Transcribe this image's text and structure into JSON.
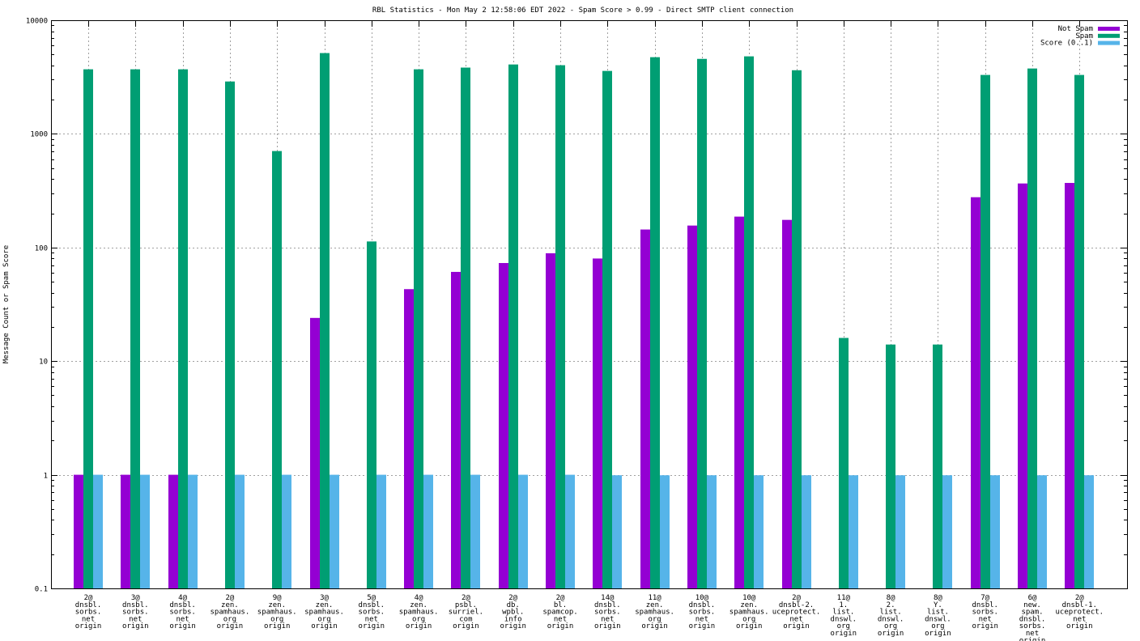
{
  "chart_data": {
    "type": "bar",
    "title": "RBL Statistics - Mon May  2 12:58:06 EDT 2022 - Spam Score > 0.99 - Direct SMTP client connection",
    "xlabel": "",
    "ylabel": "Message Count or Spam Score",
    "yscale": "log",
    "ylim": [
      0.1,
      10000
    ],
    "yticks": [
      0.1,
      1,
      10,
      100,
      1000,
      10000
    ],
    "ytick_labels": [
      "0.1",
      "1",
      "10",
      "100",
      "1000",
      "10000"
    ],
    "grid": true,
    "legend_position": "top-right",
    "categories": [
      [
        "2@",
        "dnsbl.",
        "sorbs.",
        "net",
        "origin"
      ],
      [
        "3@",
        "dnsbl.",
        "sorbs.",
        "net",
        "origin"
      ],
      [
        "4@",
        "dnsbl.",
        "sorbs.",
        "net",
        "origin"
      ],
      [
        "2@",
        "zen.",
        "spamhaus.",
        "org",
        "origin"
      ],
      [
        "9@",
        "zen.",
        "spamhaus.",
        "org",
        "origin"
      ],
      [
        "3@",
        "zen.",
        "spamhaus.",
        "org",
        "origin"
      ],
      [
        "5@",
        "dnsbl.",
        "sorbs.",
        "net",
        "origin"
      ],
      [
        "4@",
        "zen.",
        "spamhaus.",
        "org",
        "origin"
      ],
      [
        "2@",
        "psbl.",
        "surriel.",
        "com",
        "origin"
      ],
      [
        "2@",
        "db.",
        "wpbl.",
        "info",
        "origin"
      ],
      [
        "2@",
        "bl.",
        "spamcop.",
        "net",
        "origin"
      ],
      [
        "14@",
        "dnsbl.",
        "sorbs.",
        "net",
        "origin"
      ],
      [
        "11@",
        "zen.",
        "spamhaus.",
        "org",
        "origin"
      ],
      [
        "10@",
        "dnsbl.",
        "sorbs.",
        "net",
        "origin"
      ],
      [
        "10@",
        "zen.",
        "spamhaus.",
        "org",
        "origin"
      ],
      [
        "2@",
        "dnsbl-2.",
        "uceprotect.",
        "net",
        "origin"
      ],
      [
        "11@",
        "1.",
        "list.",
        "dnswl.",
        "org",
        "origin"
      ],
      [
        "8@",
        "2.",
        "list.",
        "dnswl.",
        "org",
        "origin"
      ],
      [
        "8@",
        "Y.",
        "list.",
        "dnswl.",
        "org",
        "origin"
      ],
      [
        "7@",
        "dnsbl.",
        "sorbs.",
        "net",
        "origin"
      ],
      [
        "6@",
        "new.",
        "spam.",
        "dnsbl.",
        "sorbs.",
        "net",
        "origin"
      ],
      [
        "2@",
        "dnsbl-1.",
        "uceprotect.",
        "net",
        "origin"
      ]
    ],
    "series": [
      {
        "name": "Not Spam",
        "color": "#9400d3",
        "values": [
          1,
          1,
          1,
          0,
          0,
          24,
          0,
          43,
          61,
          73,
          89,
          80,
          144,
          156,
          187,
          175,
          0,
          0,
          0,
          277,
          366,
          370
        ]
      },
      {
        "name": "Spam",
        "color": "#009e73",
        "values": [
          3700,
          3700,
          3700,
          2890,
          706,
          5140,
          113,
          3700,
          3830,
          4080,
          4020,
          3580,
          4730,
          4570,
          4810,
          3630,
          16,
          14,
          14,
          3300,
          3760,
          3300
        ]
      },
      {
        "name": "Score (0..1)",
        "color": "#56b4e9",
        "values": [
          1,
          1,
          1,
          1,
          1,
          1,
          1,
          1,
          1,
          1,
          1,
          0.99,
          0.99,
          0.99,
          0.99,
          0.99,
          0.99,
          0.99,
          0.99,
          0.99,
          0.99,
          0.99
        ]
      }
    ]
  }
}
